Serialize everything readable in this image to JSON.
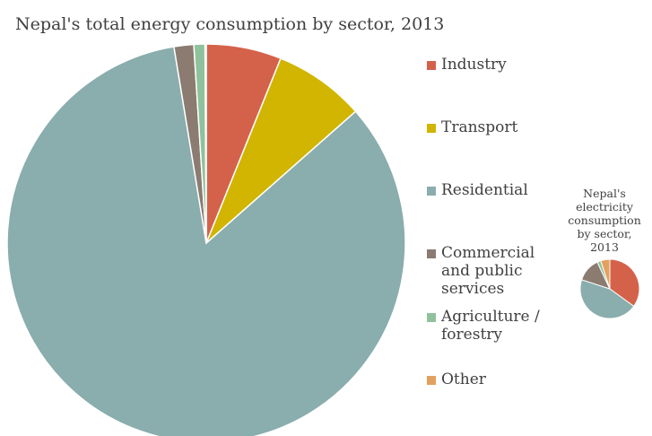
{
  "chart_data": [
    {
      "type": "pie",
      "title": "Nepal's total energy consumption by sector, 2013",
      "categories": [
        "Industry",
        "Transport",
        "Residential",
        "Commercial and public services",
        "Agriculture / forestry",
        "Other"
      ],
      "values": [
        6.1,
        7.4,
        83.9,
        1.6,
        0.9,
        0.1
      ],
      "unit": "percent of total",
      "colors": [
        "#d4624a",
        "#d1b500",
        "#8aadad",
        "#8b7b70",
        "#8fc29c",
        "#e3a15f"
      ],
      "start": "12 o'clock, clockwise"
    },
    {
      "type": "pie",
      "title": "Nepal's electricity consumption by sector, 2013",
      "categories": [
        "Industry",
        "Transport",
        "Residential",
        "Commercial and public services",
        "Agriculture / forestry",
        "Other"
      ],
      "values": [
        35,
        0,
        45,
        13,
        2,
        5
      ],
      "unit": "percent of total",
      "colors": [
        "#d4624a",
        "#d1b500",
        "#8aadad",
        "#8b7b70",
        "#8fc29c",
        "#e3a15f"
      ],
      "start": "12 o'clock, clockwise"
    }
  ],
  "legend": {
    "items": [
      {
        "label": "Industry",
        "color": "#d4624a"
      },
      {
        "label": "Transport",
        "color": "#d1b500"
      },
      {
        "label": "Residential",
        "color": "#8aadad"
      },
      {
        "label": "Commercial\nand public\nservices",
        "color": "#8b7b70"
      },
      {
        "label": "Agriculture /\nforestry",
        "color": "#8fc29c"
      },
      {
        "label": "Other",
        "color": "#e3a15f"
      }
    ]
  }
}
